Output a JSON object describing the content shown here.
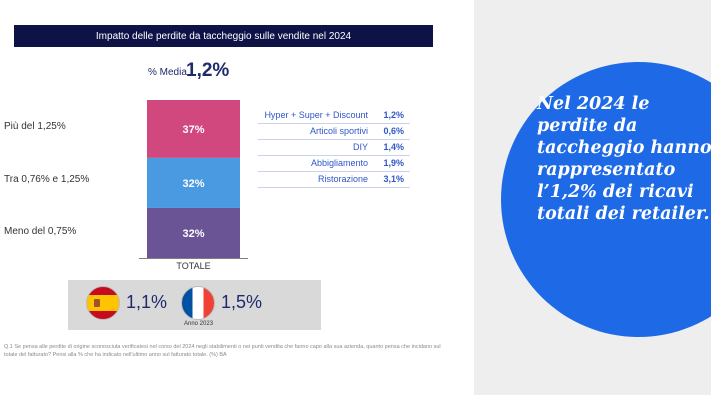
{
  "title": "Impatto delle perdite da taccheggio sulle vendite nel 2024",
  "average": {
    "label": "% Media",
    "value": "1,2%"
  },
  "chart_data": {
    "type": "bar",
    "stacked": true,
    "title": "Impatto delle perdite da taccheggio sulle vendite nel 2024",
    "categories": [
      "TOTALE"
    ],
    "series": [
      {
        "name": "Meno del 0,75%",
        "values": [
          32
        ],
        "label": "32%",
        "color": "#6a5496"
      },
      {
        "name": "Tra 0,76% e 1,25%",
        "values": [
          32
        ],
        "label": "32%",
        "color": "#4a9ae2"
      },
      {
        "name": "Più del 1,25%",
        "values": [
          37
        ],
        "label": "37%",
        "color": "#d0487e"
      }
    ],
    "xlabel": "",
    "ylabel": "",
    "ylim": [
      0,
      101
    ]
  },
  "breakdown": [
    {
      "name": "Hyper + Super + Discount",
      "value": "1,2%"
    },
    {
      "name": "Articoli sportivi",
      "value": "0,6%"
    },
    {
      "name": "DIY",
      "value": "1,4%"
    },
    {
      "name": "Abbigliamento",
      "value": "1,9%"
    },
    {
      "name": "Ristorazione",
      "value": "3,1%"
    }
  ],
  "countries": {
    "spain": {
      "value": "1,1%"
    },
    "france": {
      "value": "1,5%"
    },
    "year_label": "Anno 2023"
  },
  "footnote": "Q.1 Se pensa alle perdite di origine sconosciuta verificatesi nel corso del 2024 negli stabilimenti o nei punti vendita che fanno capo alla sua azienda, quanto pensa che incidano sul totale del fatturato? Pensi alla % che ha indicato nell'ultimo anno sul fatturato totale. (%) BA",
  "callout": "Nel 2024 le perdite da taccheggio hanno rappresentato l’1,2% dei ricavi totali dei retailer.",
  "colors": {
    "navy": "#0f1246",
    "accent_blue": "#1e6ae6",
    "text_blue": "#2f57c8"
  }
}
